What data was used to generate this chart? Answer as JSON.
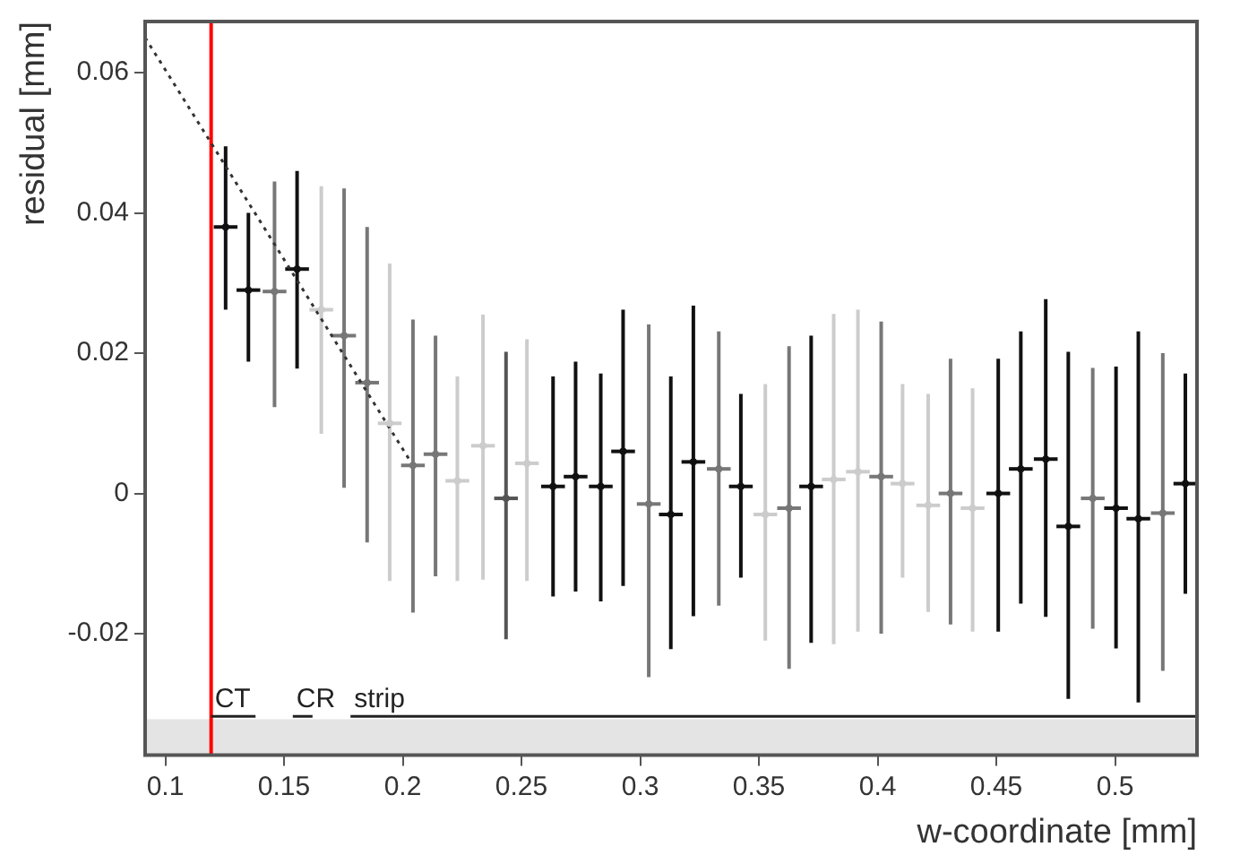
{
  "chart_data": {
    "type": "scatter",
    "xlabel": "w-coordinate [mm]",
    "ylabel": "residual [mm]",
    "xlim": [
      0.0915,
      0.5345
    ],
    "ylim": [
      -0.0373,
      0.0673
    ],
    "xticks": [
      0.1,
      0.15,
      0.2,
      0.25,
      0.3,
      0.35,
      0.4,
      0.45,
      0.5
    ],
    "yticks": [
      -0.02,
      0,
      0.02,
      0.04,
      0.06
    ],
    "grid": false,
    "legend": false,
    "series": [
      {
        "type": "scatter",
        "color": "#111111",
        "marker": "circle",
        "x": [
          0.1254,
          0.135,
          0.146,
          0.1555,
          0.1657,
          0.1753,
          0.185,
          0.1945,
          0.2043,
          0.2138,
          0.223,
          0.2338,
          0.2435,
          0.2523,
          0.2633,
          0.2728,
          0.2834,
          0.2928,
          0.3036,
          0.3129,
          0.3224,
          0.3331,
          0.3424,
          0.3527,
          0.3627,
          0.372,
          0.3815,
          0.3917,
          0.4015,
          0.4105,
          0.4213,
          0.4307,
          0.44,
          0.4508,
          0.4603,
          0.4708,
          0.4803,
          0.4906,
          0.5004,
          0.5098,
          0.5201,
          0.5296
        ],
        "values": [
          0.038,
          0.029,
          0.0288,
          0.032,
          0.0262,
          0.0225,
          0.0158,
          0.01,
          0.004,
          0.0056,
          0.0018,
          0.0068,
          -0.0007,
          0.0043,
          0.001,
          0.0024,
          0.001,
          0.006,
          -0.0015,
          -0.003,
          0.0045,
          0.0035,
          0.001,
          -0.003,
          -0.0021,
          0.001,
          0.002,
          0.0031,
          0.0024,
          0.0014,
          -0.0017,
          0.0,
          -0.0021,
          0.0,
          0.0035,
          0.0049,
          -0.0047,
          -0.0007,
          -0.0021,
          -0.0036,
          -0.0028,
          0.0014
        ],
        "errors": [
          [
            0.0262,
            0.0495
          ],
          [
            0.0188,
            0.04
          ],
          [
            0.0123,
            0.0445
          ],
          [
            0.0178,
            0.046
          ],
          [
            0.0085,
            0.0438
          ],
          [
            0.0008,
            0.0435
          ],
          [
            -0.007,
            0.038
          ],
          [
            -0.0125,
            0.0328
          ],
          [
            -0.017,
            0.0248
          ],
          [
            -0.0118,
            0.0225
          ],
          [
            -0.0125,
            0.0167
          ],
          [
            -0.0123,
            0.0255
          ],
          [
            -0.0208,
            0.0202
          ],
          [
            -0.0125,
            0.022
          ],
          [
            -0.0147,
            0.0167
          ],
          [
            -0.014,
            0.0188
          ],
          [
            -0.0154,
            0.0171
          ],
          [
            -0.0132,
            0.0262
          ],
          [
            -0.0262,
            0.0241
          ],
          [
            -0.0222,
            0.0167
          ],
          [
            -0.0175,
            0.0268
          ],
          [
            -0.016,
            0.0231
          ],
          [
            -0.012,
            0.0142
          ],
          [
            -0.021,
            0.0156
          ],
          [
            -0.025,
            0.021
          ],
          [
            -0.0213,
            0.0225
          ],
          [
            -0.0215,
            0.0256
          ],
          [
            -0.0197,
            0.0262
          ],
          [
            -0.02,
            0.0245
          ],
          [
            -0.012,
            0.0156
          ],
          [
            -0.0169,
            0.0142
          ],
          [
            -0.0187,
            0.0192
          ],
          [
            -0.0197,
            0.015
          ],
          [
            -0.0197,
            0.0192
          ],
          [
            -0.0157,
            0.0231
          ],
          [
            -0.0176,
            0.0277
          ],
          [
            -0.0293,
            0.0202
          ],
          [
            -0.0193,
            0.0179
          ],
          [
            -0.0221,
            0.0181
          ],
          [
            -0.0298,
            0.0231
          ],
          [
            -0.0253,
            0.02
          ],
          [
            -0.0143,
            0.0171
          ]
        ],
        "xerrors": [
          0.005,
          0.005,
          0.005,
          0.005,
          0.005,
          0.005,
          0.005,
          0.005,
          0.005,
          0.005,
          0.005,
          0.005,
          0.005,
          0.005,
          0.005,
          0.005,
          0.005,
          0.005,
          0.005,
          0.005,
          0.005,
          0.005,
          0.005,
          0.005,
          0.005,
          0.005,
          0.005,
          0.005,
          0.005,
          0.005,
          0.005,
          0.005,
          0.005,
          0.005,
          0.005,
          0.005,
          0.005,
          0.005,
          0.005,
          0.005,
          0.005,
          0.005
        ],
        "colors": [
          "#111111",
          "#111111",
          "#777777",
          "#111111",
          "#cccccc",
          "#777777",
          "#777777",
          "#cccccc",
          "#777777",
          "#777777",
          "#cccccc",
          "#cccccc",
          "#555555",
          "#cccccc",
          "#111111",
          "#111111",
          "#111111",
          "#111111",
          "#777777",
          "#111111",
          "#111111",
          "#777777",
          "#111111",
          "#cccccc",
          "#777777",
          "#111111",
          "#cccccc",
          "#cccccc",
          "#777777",
          "#cccccc",
          "#cccccc",
          "#777777",
          "#cccccc",
          "#111111",
          "#111111",
          "#111111",
          "#111111",
          "#777777",
          "#111111",
          "#111111",
          "#777777",
          "#111111"
        ]
      },
      {
        "type": "line",
        "color": "#333333",
        "line_style": "dotted",
        "x": [
          0.0915,
          0.2043
        ],
        "values": [
          0.065,
          0.004
        ]
      },
      {
        "type": "line",
        "name": "CT",
        "color": "#222222",
        "line_style": "solid",
        "x": [
          0.1193,
          0.138
        ],
        "values": [
          -0.0318,
          -0.0318
        ]
      },
      {
        "type": "line",
        "name": "CR",
        "color": "#222222",
        "line_style": "solid",
        "x": [
          0.1537,
          0.162
        ],
        "values": [
          -0.0318,
          -0.0318
        ]
      },
      {
        "type": "line",
        "name": "strip",
        "color": "#222222",
        "line_style": "solid",
        "x": [
          0.178,
          0.5345
        ],
        "values": [
          -0.0318,
          -0.0318
        ]
      }
    ],
    "ref_lines": [
      {
        "axis": "x",
        "value": 0.1193,
        "color": "#ff0000"
      }
    ],
    "bands": [
      {
        "axis": "y",
        "from": -0.0373,
        "to": -0.0322,
        "color": "#e4e4e4"
      }
    ]
  }
}
